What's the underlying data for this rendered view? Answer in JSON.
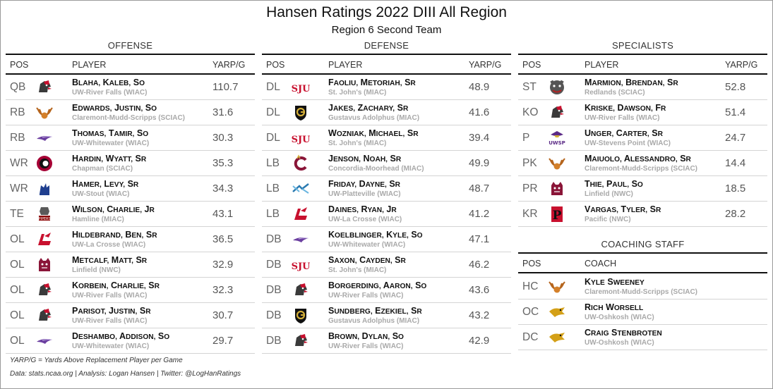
{
  "title": "Hansen Ratings 2022 DIII All Region",
  "subtitle": "Region 6 Second Team",
  "colors": {
    "frame": "#9a9a9a",
    "rule": "#111111",
    "team_text": "#a9a9a9",
    "value_text": "#555555"
  },
  "headers": {
    "pos": "POS",
    "player": "PLAYER",
    "yarp": "YARP/G",
    "coach": "COACH"
  },
  "sections": [
    {
      "title": "OFFENSE",
      "rows": [
        {
          "pos": "QB",
          "name": "Blaha, Kaleb, So",
          "team": "UW-River Falls (WIAC)",
          "yarp": "110.7",
          "logo": "falcon-head-icon"
        },
        {
          "pos": "RB",
          "name": "Edwards, Justin, So",
          "team": "Claremont-Mudd-Scripps (SCIAC)",
          "yarp": "31.6",
          "logo": "stag-antlers-icon"
        },
        {
          "pos": "RB",
          "name": "Thomas, Tamir, So",
          "team": "UW-Whitewater (WIAC)",
          "yarp": "30.3",
          "logo": "warhawk-icon"
        },
        {
          "pos": "WR",
          "name": "Hardin, Wyatt, Sr",
          "team": "Chapman (SCIAC)",
          "yarp": "35.3",
          "logo": "chapman-c-icon"
        },
        {
          "pos": "WR",
          "name": "Hamer, Levy, Sr",
          "team": "UW-Stout (WIAC)",
          "yarp": "34.3",
          "logo": "blue-devils-icon"
        },
        {
          "pos": "TE",
          "name": "Wilson, Charlie, Jr",
          "team": "Hamline (MIAC)",
          "yarp": "43.1",
          "logo": "pipers-icon"
        },
        {
          "pos": "OL",
          "name": "Hildebrand, Ben, Sr",
          "team": "UW-La Crosse (WIAC)",
          "yarp": "36.5",
          "logo": "eagle-l-icon"
        },
        {
          "pos": "OL",
          "name": "Metcalf, Matt, Sr",
          "team": "Linfield (NWC)",
          "yarp": "32.9",
          "logo": "wildcat-icon"
        },
        {
          "pos": "OL",
          "name": "Korbein, Charlie, Sr",
          "team": "UW-River Falls (WIAC)",
          "yarp": "32.3",
          "logo": "falcon-head-icon"
        },
        {
          "pos": "OL",
          "name": "Parisot, Justin, Sr",
          "team": "UW-River Falls (WIAC)",
          "yarp": "30.7",
          "logo": "falcon-head-icon"
        },
        {
          "pos": "OL",
          "name": "DeShambo, Addison, So",
          "team": "UW-Whitewater (WIAC)",
          "yarp": "29.7",
          "logo": "warhawk-icon"
        }
      ]
    },
    {
      "title": "DEFENSE",
      "rows": [
        {
          "pos": "DL",
          "name": "Faoliu, Metoriah, Sr",
          "team": "St. John's (MIAC)",
          "yarp": "48.9",
          "logo": "sju-wordmark-icon",
          "logo_text": "SJU"
        },
        {
          "pos": "DL",
          "name": "Jakes, Zachary, Sr",
          "team": "Gustavus Adolphus (MIAC)",
          "yarp": "41.6",
          "logo": "gustavus-shield-icon"
        },
        {
          "pos": "DL",
          "name": "Wozniak, Michael, Sr",
          "team": "St. John's (MIAC)",
          "yarp": "39.4",
          "logo": "sju-wordmark-icon",
          "logo_text": "SJU"
        },
        {
          "pos": "LB",
          "name": "Jenson, Noah, Sr",
          "team": "Concordia-Moorhead (MIAC)",
          "yarp": "49.9",
          "logo": "cobbers-c-icon"
        },
        {
          "pos": "LB",
          "name": "Friday, Dayne, Sr",
          "team": "UW-Platteville (WIAC)",
          "yarp": "48.7",
          "logo": "pioneers-icon"
        },
        {
          "pos": "LB",
          "name": "Daines, Ryan, Jr",
          "team": "UW-La Crosse (WIAC)",
          "yarp": "41.2",
          "logo": "eagle-l-icon"
        },
        {
          "pos": "DB",
          "name": "Koelblinger, Kyle, So",
          "team": "UW-Whitewater (WIAC)",
          "yarp": "47.1",
          "logo": "warhawk-icon"
        },
        {
          "pos": "DB",
          "name": "Saxon, Cayden, Sr",
          "team": "St. John's (MIAC)",
          "yarp": "46.2",
          "logo": "sju-wordmark-icon",
          "logo_text": "SJU"
        },
        {
          "pos": "DB",
          "name": "Borgerding, Aaron, So",
          "team": "UW-River Falls (WIAC)",
          "yarp": "43.6",
          "logo": "falcon-head-icon"
        },
        {
          "pos": "DB",
          "name": "Sundberg, Ezekiel, Sr",
          "team": "Gustavus Adolphus (MIAC)",
          "yarp": "43.2",
          "logo": "gustavus-shield-icon"
        },
        {
          "pos": "DB",
          "name": "Brown, Dylan, So",
          "team": "UW-River Falls (WIAC)",
          "yarp": "42.9",
          "logo": "falcon-head-icon"
        }
      ]
    },
    {
      "title": "SPECIALISTS",
      "rows": [
        {
          "pos": "ST",
          "name": "Marmion, Brendan, Sr",
          "team": "Redlands (SCIAC)",
          "yarp": "52.8",
          "logo": "bulldog-icon"
        },
        {
          "pos": "KO",
          "name": "Kriske, Dawson, Fr",
          "team": "UW-River Falls (WIAC)",
          "yarp": "51.4",
          "logo": "falcon-head-icon"
        },
        {
          "pos": "P",
          "name": "Unger, Carter, Sr",
          "team": "UW-Stevens Point (WIAC)",
          "yarp": "24.7",
          "logo": "uwsp-pointer-icon",
          "logo_text": "UWSP"
        },
        {
          "pos": "PK",
          "name": "Maiuolo, Alessandro, Sr",
          "team": "Claremont-Mudd-Scripps (SCIAC)",
          "yarp": "14.4",
          "logo": "stag-antlers-icon"
        },
        {
          "pos": "PR",
          "name": "Thie, Paul, So",
          "team": "Linfield (NWC)",
          "yarp": "18.5",
          "logo": "wildcat-icon"
        },
        {
          "pos": "KR",
          "name": "Vargas, Tyler, Sr",
          "team": "Pacific (NWC)",
          "yarp": "28.2",
          "logo": "pacific-p-icon",
          "logo_text": "P"
        }
      ]
    }
  ],
  "coaching": {
    "title": "COACHING STAFF",
    "rows": [
      {
        "pos": "HC",
        "name": "Kyle Sweeney",
        "team": "Claremont-Mudd-Scripps (SCIAC)",
        "logo": "stag-antlers-icon"
      },
      {
        "pos": "OC",
        "name": "Rich Worsell",
        "team": "UW-Oshkosh (WIAC)",
        "logo": "titan-icon"
      },
      {
        "pos": "DC",
        "name": "Craig Stenbroten",
        "team": "UW-Oshkosh (WIAC)",
        "logo": "titan-icon"
      }
    ]
  },
  "footnotes": {
    "definition": "YARP/G = Yards Above Replacement Player per Game",
    "credits": "Data: stats.ncaa.org | Analysis: Logan Hansen | Twitter: @LogHanRatings"
  }
}
